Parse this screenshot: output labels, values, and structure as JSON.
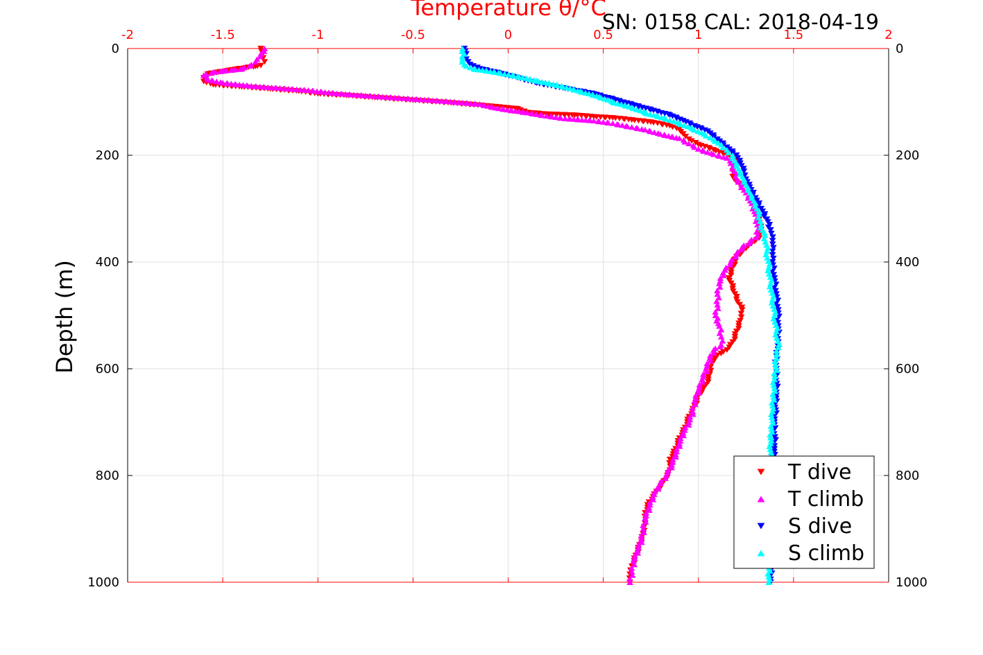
{
  "header": {
    "sn_text": "SN: 0158  CAL: 2018-04-19"
  },
  "chart_data": {
    "type": "scatter",
    "title": "",
    "xlabel": "Temperature θ/°C",
    "ylabel": "Depth (m)",
    "xlim": [
      -2,
      2
    ],
    "ylim": [
      0,
      1000
    ],
    "y_reversed": true,
    "x_ticks": [
      "-2",
      "-1.5",
      "-1",
      "-0.5",
      "0",
      "0.5",
      "1",
      "1.5",
      "2"
    ],
    "y_ticks_left": [
      "0",
      "200",
      "400",
      "600",
      "800",
      "1000"
    ],
    "y_ticks_right": [
      "0",
      "200",
      "400",
      "600",
      "800",
      "1000"
    ],
    "grid": true,
    "legend_position": "bottom-right",
    "series": [
      {
        "name": "T dive",
        "color": "#ff0000",
        "marker": "triangle-down",
        "points": [
          [
            -1.3,
            0
          ],
          [
            -1.29,
            10
          ],
          [
            -1.28,
            25
          ],
          [
            -1.3,
            32
          ],
          [
            -1.45,
            40
          ],
          [
            -1.58,
            48
          ],
          [
            -1.6,
            55
          ],
          [
            -1.6,
            62
          ],
          [
            -1.55,
            68
          ],
          [
            -1.4,
            72
          ],
          [
            -1.25,
            76
          ],
          [
            -1.1,
            80
          ],
          [
            -1.0,
            85
          ],
          [
            -0.85,
            88
          ],
          [
            -0.7,
            92
          ],
          [
            -0.5,
            97
          ],
          [
            -0.3,
            102
          ],
          [
            -0.1,
            108
          ],
          [
            0.05,
            113
          ],
          [
            0.1,
            120
          ],
          [
            0.2,
            123
          ],
          [
            0.35,
            125
          ],
          [
            0.45,
            128
          ],
          [
            0.55,
            130
          ],
          [
            0.65,
            134
          ],
          [
            0.75,
            138
          ],
          [
            0.85,
            145
          ],
          [
            0.9,
            152
          ],
          [
            0.92,
            160
          ],
          [
            0.95,
            170
          ],
          [
            1.0,
            180
          ],
          [
            1.08,
            190
          ],
          [
            1.15,
            200
          ],
          [
            1.2,
            205
          ],
          [
            1.2,
            215
          ],
          [
            1.18,
            230
          ],
          [
            1.18,
            240
          ],
          [
            1.2,
            250
          ],
          [
            1.26,
            260
          ],
          [
            1.28,
            280
          ],
          [
            1.3,
            300
          ],
          [
            1.32,
            320
          ],
          [
            1.33,
            340
          ],
          [
            1.32,
            355
          ],
          [
            1.28,
            365
          ],
          [
            1.25,
            375
          ],
          [
            1.2,
            390
          ],
          [
            1.18,
            410
          ],
          [
            1.16,
            430
          ],
          [
            1.18,
            450
          ],
          [
            1.2,
            470
          ],
          [
            1.23,
            490
          ],
          [
            1.22,
            510
          ],
          [
            1.2,
            530
          ],
          [
            1.18,
            550
          ],
          [
            1.15,
            565
          ],
          [
            1.1,
            575
          ],
          [
            1.07,
            590
          ],
          [
            1.06,
            610
          ],
          [
            1.04,
            630
          ],
          [
            1.0,
            650
          ],
          [
            0.98,
            670
          ],
          [
            0.95,
            690
          ],
          [
            0.93,
            710
          ],
          [
            0.9,
            730
          ],
          [
            0.88,
            750
          ],
          [
            0.85,
            770
          ],
          [
            0.85,
            790
          ],
          [
            0.82,
            810
          ],
          [
            0.78,
            830
          ],
          [
            0.74,
            850
          ],
          [
            0.72,
            870
          ],
          [
            0.72,
            890
          ],
          [
            0.71,
            910
          ],
          [
            0.69,
            930
          ],
          [
            0.67,
            950
          ],
          [
            0.65,
            970
          ],
          [
            0.64,
            985
          ],
          [
            0.64,
            1000
          ]
        ]
      },
      {
        "name": "T climb",
        "color": "#ff00ff",
        "marker": "triangle-up",
        "points": [
          [
            -1.28,
            0
          ],
          [
            -1.3,
            10
          ],
          [
            -1.32,
            20
          ],
          [
            -1.35,
            30
          ],
          [
            -1.4,
            38
          ],
          [
            -1.55,
            44
          ],
          [
            -1.6,
            50
          ],
          [
            -1.58,
            58
          ],
          [
            -1.5,
            64
          ],
          [
            -1.35,
            70
          ],
          [
            -1.2,
            74
          ],
          [
            -1.05,
            78
          ],
          [
            -0.9,
            84
          ],
          [
            -0.75,
            88
          ],
          [
            -0.55,
            93
          ],
          [
            -0.35,
            98
          ],
          [
            -0.15,
            104
          ],
          [
            -0.05,
            112
          ],
          [
            0.1,
            120
          ],
          [
            0.2,
            126
          ],
          [
            0.3,
            131
          ],
          [
            0.45,
            135
          ],
          [
            0.55,
            140
          ],
          [
            0.65,
            147
          ],
          [
            0.72,
            152
          ],
          [
            0.8,
            160
          ],
          [
            0.9,
            168
          ],
          [
            0.95,
            178
          ],
          [
            1.0,
            188
          ],
          [
            1.08,
            198
          ],
          [
            1.15,
            205
          ],
          [
            1.17,
            215
          ],
          [
            1.19,
            230
          ],
          [
            1.21,
            250
          ],
          [
            1.25,
            270
          ],
          [
            1.28,
            290
          ],
          [
            1.3,
            310
          ],
          [
            1.31,
            330
          ],
          [
            1.31,
            350
          ],
          [
            1.27,
            362
          ],
          [
            1.23,
            372
          ],
          [
            1.2,
            385
          ],
          [
            1.17,
            400
          ],
          [
            1.13,
            420
          ],
          [
            1.11,
            440
          ],
          [
            1.1,
            460
          ],
          [
            1.1,
            480
          ],
          [
            1.09,
            500
          ],
          [
            1.11,
            520
          ],
          [
            1.12,
            540
          ],
          [
            1.12,
            555
          ],
          [
            1.08,
            565
          ],
          [
            1.06,
            580
          ],
          [
            1.04,
            600
          ],
          [
            1.02,
            620
          ],
          [
            1.0,
            640
          ],
          [
            0.98,
            660
          ],
          [
            0.97,
            680
          ],
          [
            0.95,
            700
          ],
          [
            0.92,
            720
          ],
          [
            0.9,
            740
          ],
          [
            0.88,
            760
          ],
          [
            0.86,
            780
          ],
          [
            0.83,
            800
          ],
          [
            0.79,
            820
          ],
          [
            0.76,
            840
          ],
          [
            0.74,
            860
          ],
          [
            0.72,
            880
          ],
          [
            0.71,
            900
          ],
          [
            0.7,
            920
          ],
          [
            0.68,
            940
          ],
          [
            0.66,
            960
          ],
          [
            0.65,
            980
          ],
          [
            0.64,
            1000
          ]
        ]
      },
      {
        "name": "S dive",
        "color": "#0000ff",
        "marker": "triangle-down",
        "points": [
          [
            -0.23,
            0
          ],
          [
            -0.22,
            10
          ],
          [
            -0.22,
            20
          ],
          [
            -0.2,
            30
          ],
          [
            -0.15,
            38
          ],
          [
            -0.05,
            46
          ],
          [
            0.05,
            55
          ],
          [
            0.15,
            65
          ],
          [
            0.3,
            75
          ],
          [
            0.45,
            85
          ],
          [
            0.55,
            95
          ],
          [
            0.65,
            105
          ],
          [
            0.75,
            115
          ],
          [
            0.85,
            125
          ],
          [
            0.92,
            135
          ],
          [
            0.98,
            145
          ],
          [
            1.05,
            155
          ],
          [
            1.1,
            170
          ],
          [
            1.15,
            185
          ],
          [
            1.2,
            200
          ],
          [
            1.22,
            215
          ],
          [
            1.24,
            230
          ],
          [
            1.25,
            245
          ],
          [
            1.27,
            260
          ],
          [
            1.3,
            280
          ],
          [
            1.33,
            300
          ],
          [
            1.36,
            320
          ],
          [
            1.38,
            340
          ],
          [
            1.39,
            360
          ],
          [
            1.39,
            380
          ],
          [
            1.39,
            400
          ],
          [
            1.4,
            430
          ],
          [
            1.41,
            460
          ],
          [
            1.42,
            490
          ],
          [
            1.42,
            520
          ],
          [
            1.42,
            550
          ],
          [
            1.41,
            570
          ],
          [
            1.41,
            600
          ],
          [
            1.41,
            650
          ],
          [
            1.4,
            700
          ],
          [
            1.4,
            750
          ],
          [
            1.39,
            800
          ],
          [
            1.39,
            850
          ],
          [
            1.38,
            900
          ],
          [
            1.38,
            950
          ],
          [
            1.38,
            1000
          ]
        ]
      },
      {
        "name": "S climb",
        "color": "#00ffff",
        "marker": "triangle-up",
        "points": [
          [
            -0.24,
            0
          ],
          [
            -0.23,
            10
          ],
          [
            -0.24,
            20
          ],
          [
            -0.23,
            30
          ],
          [
            -0.18,
            38
          ],
          [
            -0.05,
            45
          ],
          [
            0.05,
            52
          ],
          [
            0.15,
            60
          ],
          [
            0.28,
            70
          ],
          [
            0.38,
            80
          ],
          [
            0.48,
            90
          ],
          [
            0.55,
            100
          ],
          [
            0.65,
            110
          ],
          [
            0.72,
            120
          ],
          [
            0.82,
            130
          ],
          [
            0.9,
            140
          ],
          [
            0.97,
            150
          ],
          [
            1.03,
            160
          ],
          [
            1.08,
            170
          ],
          [
            1.12,
            180
          ],
          [
            1.15,
            190
          ],
          [
            1.18,
            200
          ],
          [
            1.2,
            215
          ],
          [
            1.22,
            230
          ],
          [
            1.24,
            245
          ],
          [
            1.26,
            260
          ],
          [
            1.28,
            275
          ],
          [
            1.3,
            290
          ],
          [
            1.32,
            310
          ],
          [
            1.33,
            330
          ],
          [
            1.35,
            350
          ],
          [
            1.36,
            380
          ],
          [
            1.37,
            410
          ],
          [
            1.38,
            440
          ],
          [
            1.39,
            470
          ],
          [
            1.4,
            500
          ],
          [
            1.41,
            530
          ],
          [
            1.42,
            560
          ],
          [
            1.41,
            580
          ],
          [
            1.4,
            620
          ],
          [
            1.39,
            680
          ],
          [
            1.38,
            740
          ],
          [
            1.38,
            800
          ],
          [
            1.38,
            860
          ],
          [
            1.37,
            920
          ],
          [
            1.37,
            1000
          ]
        ]
      }
    ]
  }
}
